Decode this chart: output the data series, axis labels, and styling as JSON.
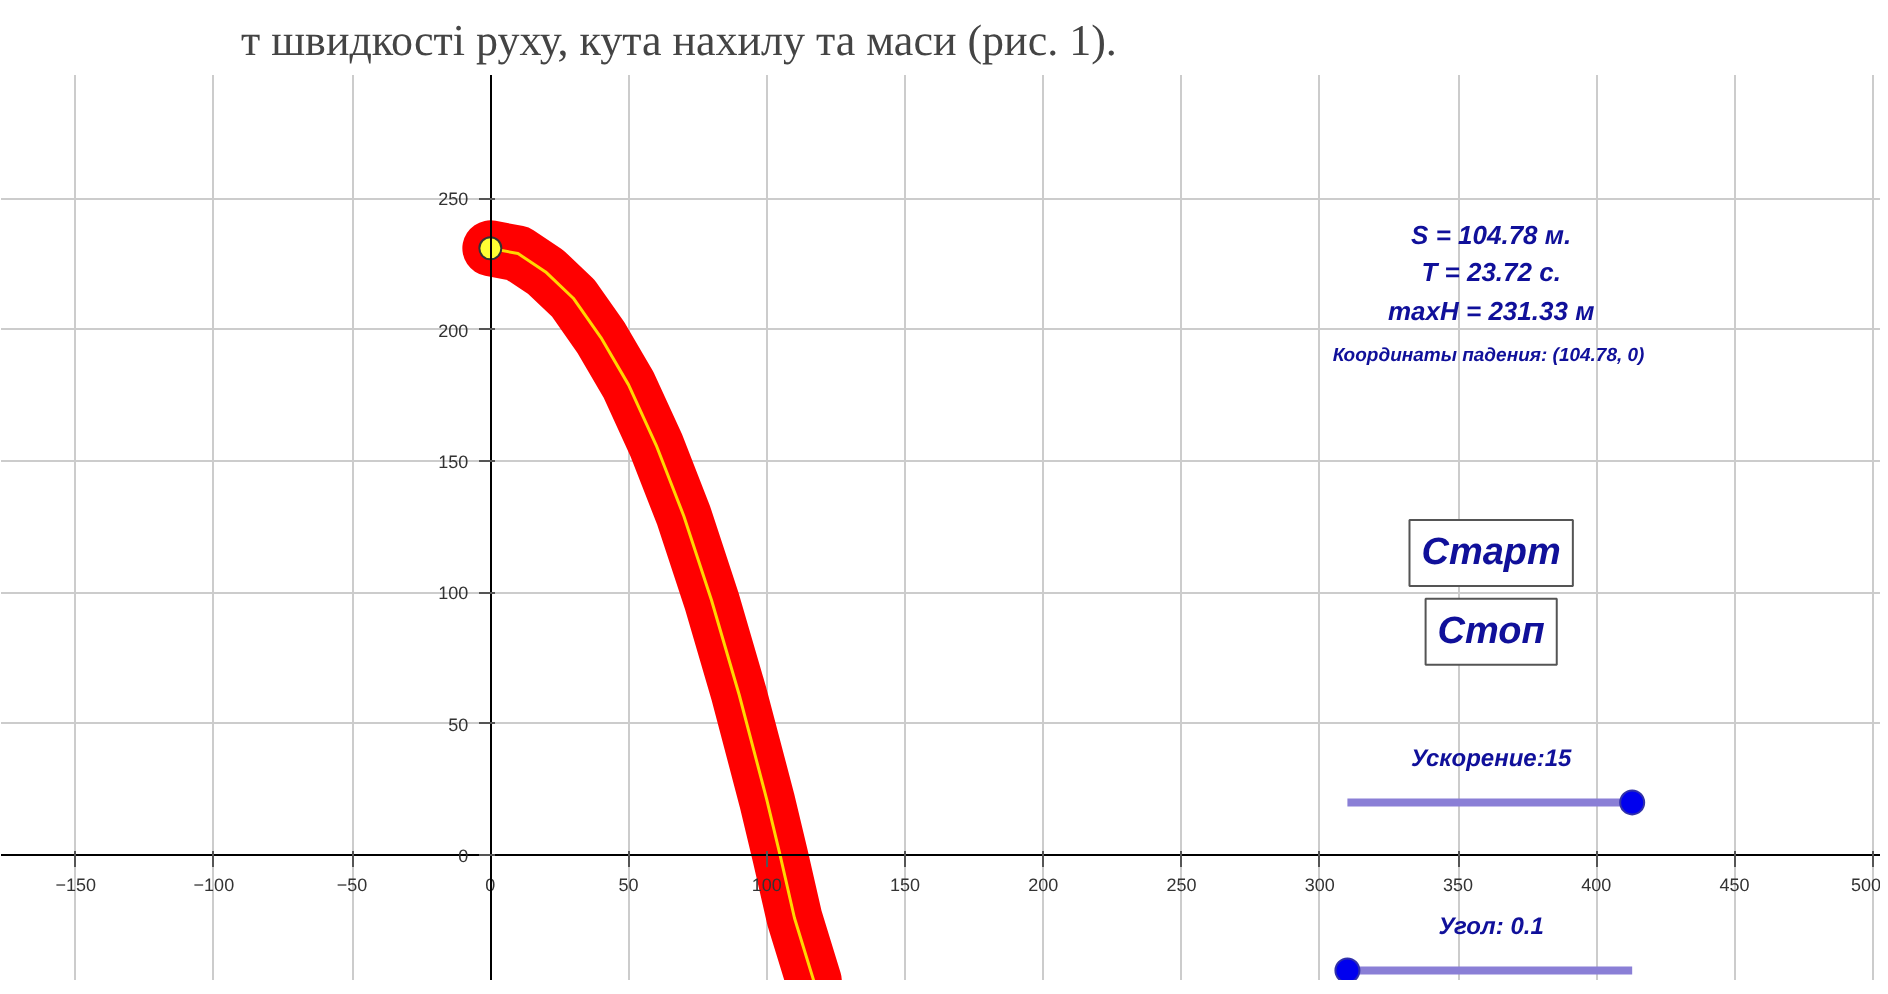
{
  "chart_data": {
    "type": "line",
    "title": "т швидкості руху, кута нахилу та маси (рис. 1).",
    "x": [
      0,
      10,
      20,
      30,
      40,
      50,
      60,
      70,
      80,
      90,
      100,
      104.78,
      110,
      117
    ],
    "series": [
      {
        "color": "#ff0000",
        "values": [
          231,
          229,
          222,
          212,
          197,
          179,
          156,
          129,
          97,
          61,
          21,
          0,
          -24,
          -48
        ]
      },
      {
        "color": "#ffd700",
        "values": [
          231,
          229,
          222,
          212,
          197,
          179,
          156,
          129,
          97,
          61,
          21,
          0,
          -24,
          -48
        ]
      },
      {
        "type": "scatter",
        "color": "#ffff33",
        "x": [
          0
        ],
        "values": [
          231
        ]
      }
    ],
    "xlim": [
      -177,
      503
    ],
    "ylim": [
      -48,
      297
    ],
    "xticks": [
      -150,
      -100,
      -50,
      0,
      50,
      100,
      150,
      200,
      250,
      300,
      350,
      400,
      450,
      500
    ],
    "yticks": [
      0,
      50,
      100,
      150,
      200,
      250
    ],
    "grid": true,
    "annotations": [
      "S = 104.78 м.",
      "T = 23.72 с.",
      "maxH = 231.33 м",
      "Координаты падения:  (104.78, 0)",
      "Старт",
      "Стоп",
      "Ускорение:15",
      "Угол: 0.1"
    ]
  }
}
